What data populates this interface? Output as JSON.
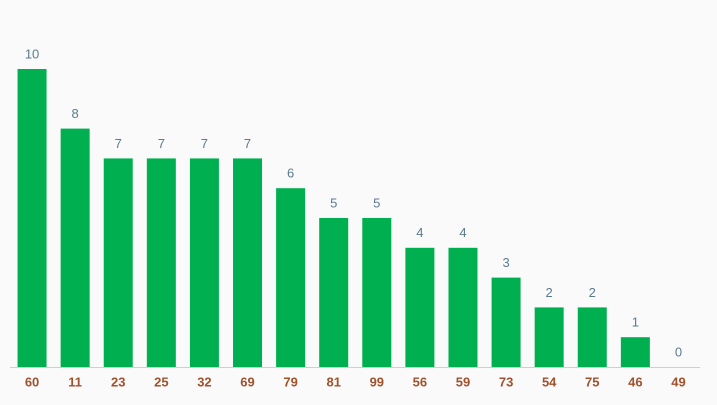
{
  "chart_data": {
    "type": "bar",
    "categories": [
      "60",
      "11",
      "23",
      "25",
      "32",
      "69",
      "79",
      "81",
      "99",
      "56",
      "59",
      "73",
      "54",
      "75",
      "46",
      "49"
    ],
    "values": [
      10,
      8,
      7,
      7,
      7,
      7,
      6,
      5,
      5,
      4,
      4,
      3,
      2,
      2,
      1,
      0
    ],
    "color": "#00b050",
    "ylim": [
      0,
      10
    ]
  }
}
